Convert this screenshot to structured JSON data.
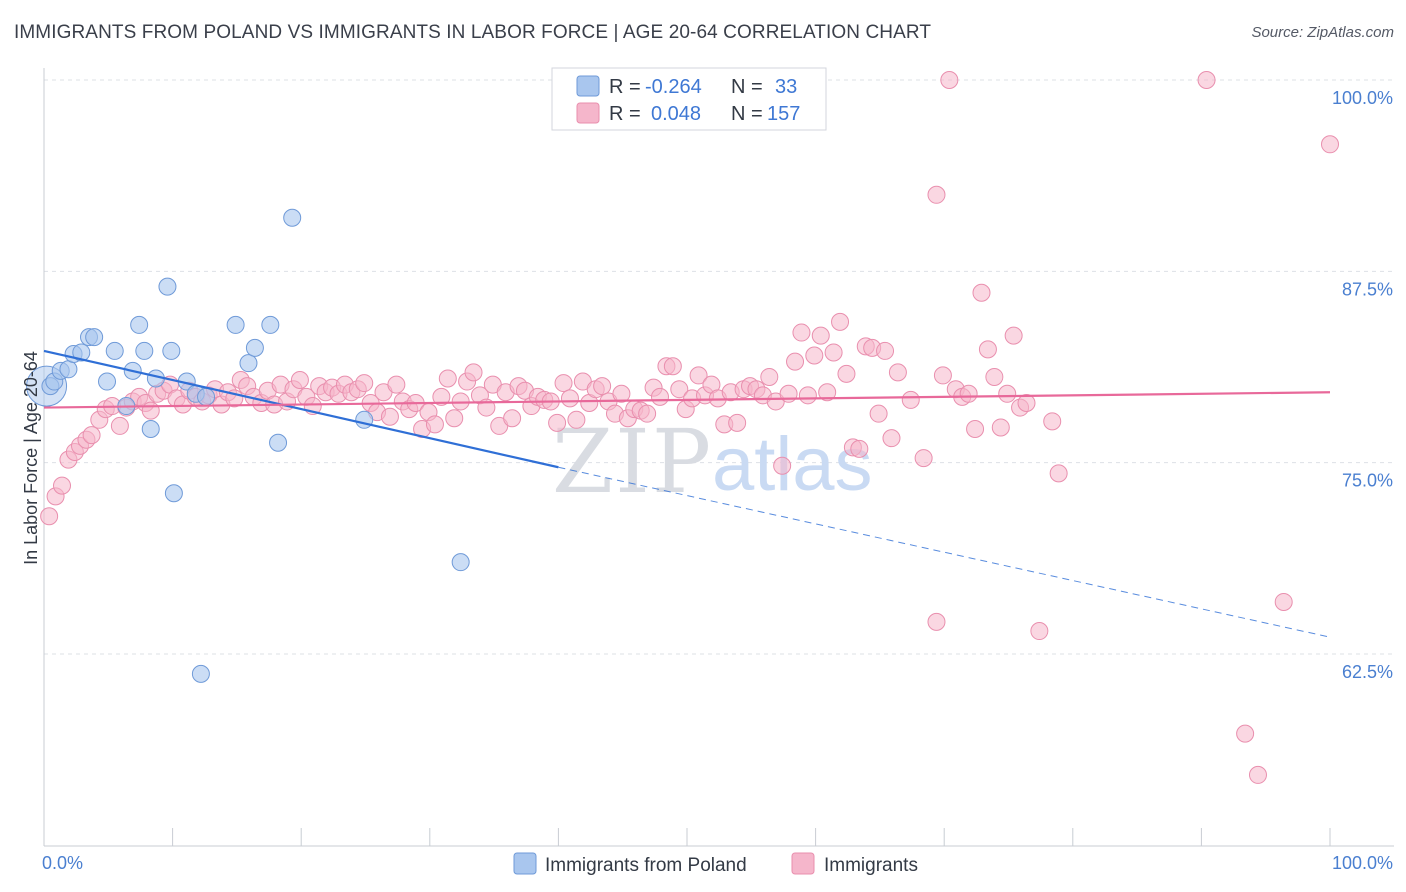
{
  "title": "IMMIGRANTS FROM POLAND VS IMMIGRANTS IN LABOR FORCE | AGE 20-64 CORRELATION CHART",
  "source": "Source: ZipAtlas.com",
  "watermark": {
    "zip": "ZIP",
    "atlas": "atlas"
  },
  "colors": {
    "blue_fill": "#a9c6ee",
    "blue_stroke": "#6f9ad8",
    "blue_line": "#2f6fd6",
    "pink_fill": "#f5b6cb",
    "pink_stroke": "#e98fae",
    "pink_line": "#e8699a",
    "grid": "#dde0e6",
    "tick_label": "#4a7fd0"
  },
  "legend": {
    "rows": [
      {
        "r_label": "R =",
        "r_value": "-0.264",
        "n_label": "N =",
        "n_value": "33"
      },
      {
        "r_label": "R =",
        "r_value": "0.048",
        "n_label": "N =",
        "n_value": "157"
      }
    ]
  },
  "bottom_legend": [
    {
      "label": "Immigrants from Poland"
    },
    {
      "label": "Immigrants"
    }
  ],
  "chart_data": {
    "type": "scatter",
    "title": "IMMIGRANTS FROM POLAND VS IMMIGRANTS IN LABOR FORCE | AGE 20-64 CORRELATION CHART",
    "xlabel": "Immigrants from Poland",
    "ylabel": "In Labor Force | Age 20-64",
    "xlim": [
      0,
      100
    ],
    "ylim": [
      51.5,
      101.5
    ],
    "x_tick_labels": [
      "0.0%",
      "100.0%"
    ],
    "y_ticks": [
      62.5,
      75.0,
      87.5,
      100.0
    ],
    "y_tick_labels": [
      "62.5%",
      "75.0%",
      "87.5%",
      "100.0%"
    ],
    "x_tick_marks": [
      0,
      10,
      20,
      30,
      40,
      50,
      60,
      70,
      80,
      90,
      100
    ],
    "series": [
      {
        "name": "Immigrants from Poland",
        "r": -0.264,
        "n": 33,
        "trend": {
          "x0": 0,
          "y0": 82.3,
          "x1": 40,
          "y1": 74.7,
          "dash_to_x": 100,
          "dash_to_y": 63.6
        },
        "points": [
          [
            0.5,
            80.0
          ],
          [
            0.8,
            80.3
          ],
          [
            1.3,
            81.0
          ],
          [
            1.9,
            81.1
          ],
          [
            2.3,
            82.1
          ],
          [
            2.9,
            82.2
          ],
          [
            3.5,
            83.2
          ],
          [
            3.9,
            83.2
          ],
          [
            4.9,
            80.3
          ],
          [
            5.5,
            82.3
          ],
          [
            6.4,
            78.7
          ],
          [
            6.9,
            81.0
          ],
          [
            7.4,
            84.0
          ],
          [
            7.8,
            82.3
          ],
          [
            8.3,
            77.2
          ],
          [
            8.7,
            80.5
          ],
          [
            9.6,
            86.5
          ],
          [
            9.9,
            82.3
          ],
          [
            10.1,
            73.0
          ],
          [
            11.1,
            80.3
          ],
          [
            11.8,
            79.5
          ],
          [
            12.2,
            61.2
          ],
          [
            12.6,
            79.3
          ],
          [
            14.9,
            84.0
          ],
          [
            15.9,
            81.5
          ],
          [
            16.4,
            82.5
          ],
          [
            17.6,
            84.0
          ],
          [
            18.2,
            76.3
          ],
          [
            19.3,
            91.0
          ],
          [
            24.9,
            77.8
          ],
          [
            32.4,
            68.5
          ]
        ],
        "big_point": [
          0.2,
          80.0
        ]
      },
      {
        "name": "Immigrants",
        "r": 0.048,
        "n": 157,
        "trend": {
          "x0": 0,
          "y0": 78.6,
          "x1": 100,
          "y1": 79.6
        },
        "points": [
          [
            0.4,
            71.5
          ],
          [
            0.9,
            72.8
          ],
          [
            1.4,
            73.5
          ],
          [
            1.9,
            75.2
          ],
          [
            2.4,
            75.7
          ],
          [
            2.8,
            76.1
          ],
          [
            3.3,
            76.5
          ],
          [
            3.7,
            76.8
          ],
          [
            4.3,
            77.8
          ],
          [
            4.8,
            78.5
          ],
          [
            5.3,
            78.7
          ],
          [
            5.9,
            77.4
          ],
          [
            6.4,
            78.6
          ],
          [
            6.9,
            79.0
          ],
          [
            7.4,
            79.3
          ],
          [
            7.9,
            78.9
          ],
          [
            8.3,
            78.4
          ],
          [
            8.8,
            79.5
          ],
          [
            9.3,
            79.7
          ],
          [
            9.8,
            80.1
          ],
          [
            10.3,
            79.2
          ],
          [
            10.8,
            78.8
          ],
          [
            11.3,
            79.7
          ],
          [
            11.8,
            79.3
          ],
          [
            12.3,
            79.0
          ],
          [
            12.8,
            79.4
          ],
          [
            13.3,
            79.8
          ],
          [
            13.8,
            78.8
          ],
          [
            14.3,
            79.6
          ],
          [
            14.8,
            79.2
          ],
          [
            15.3,
            80.4
          ],
          [
            15.8,
            80.0
          ],
          [
            16.3,
            79.3
          ],
          [
            16.9,
            78.9
          ],
          [
            17.4,
            79.7
          ],
          [
            17.9,
            78.8
          ],
          [
            18.4,
            80.1
          ],
          [
            18.9,
            79.0
          ],
          [
            19.4,
            79.8
          ],
          [
            19.9,
            80.4
          ],
          [
            20.4,
            79.3
          ],
          [
            20.9,
            78.7
          ],
          [
            21.4,
            80.0
          ],
          [
            21.9,
            79.6
          ],
          [
            22.4,
            79.9
          ],
          [
            22.9,
            79.5
          ],
          [
            23.4,
            80.1
          ],
          [
            23.9,
            79.6
          ],
          [
            24.4,
            79.8
          ],
          [
            24.9,
            80.2
          ],
          [
            25.4,
            78.9
          ],
          [
            25.9,
            78.3
          ],
          [
            26.4,
            79.6
          ],
          [
            26.9,
            78.0
          ],
          [
            27.4,
            80.1
          ],
          [
            27.9,
            79.0
          ],
          [
            28.4,
            78.5
          ],
          [
            28.9,
            78.9
          ],
          [
            29.4,
            77.2
          ],
          [
            29.9,
            78.3
          ],
          [
            30.4,
            77.5
          ],
          [
            30.9,
            79.3
          ],
          [
            31.4,
            80.5
          ],
          [
            31.9,
            77.9
          ],
          [
            32.4,
            79.0
          ],
          [
            32.9,
            80.3
          ],
          [
            33.4,
            80.9
          ],
          [
            33.9,
            79.4
          ],
          [
            34.4,
            78.6
          ],
          [
            34.9,
            80.1
          ],
          [
            35.4,
            77.4
          ],
          [
            35.9,
            79.6
          ],
          [
            36.4,
            77.9
          ],
          [
            36.9,
            80.0
          ],
          [
            37.4,
            79.7
          ],
          [
            37.9,
            78.7
          ],
          [
            38.4,
            79.3
          ],
          [
            38.9,
            79.1
          ],
          [
            39.4,
            79.0
          ],
          [
            39.9,
            77.6
          ],
          [
            40.4,
            80.2
          ],
          [
            40.9,
            79.2
          ],
          [
            41.4,
            77.8
          ],
          [
            41.9,
            80.3
          ],
          [
            42.4,
            78.9
          ],
          [
            42.9,
            79.8
          ],
          [
            43.4,
            80.0
          ],
          [
            43.9,
            79.0
          ],
          [
            44.4,
            78.2
          ],
          [
            44.9,
            79.5
          ],
          [
            45.4,
            77.9
          ],
          [
            45.9,
            78.5
          ],
          [
            46.4,
            78.4
          ],
          [
            46.9,
            78.2
          ],
          [
            47.4,
            79.9
          ],
          [
            47.9,
            79.3
          ],
          [
            48.4,
            81.3
          ],
          [
            48.9,
            81.3
          ],
          [
            49.4,
            79.8
          ],
          [
            49.9,
            78.5
          ],
          [
            50.4,
            79.2
          ],
          [
            50.9,
            80.7
          ],
          [
            51.4,
            79.4
          ],
          [
            51.9,
            80.1
          ],
          [
            52.4,
            79.2
          ],
          [
            52.9,
            77.5
          ],
          [
            53.4,
            79.6
          ],
          [
            53.9,
            77.6
          ],
          [
            54.4,
            79.8
          ],
          [
            54.9,
            80.0
          ],
          [
            55.4,
            79.8
          ],
          [
            55.9,
            79.4
          ],
          [
            56.4,
            80.6
          ],
          [
            56.9,
            79.0
          ],
          [
            57.4,
            74.8
          ],
          [
            57.9,
            79.5
          ],
          [
            58.4,
            81.6
          ],
          [
            58.9,
            83.5
          ],
          [
            59.4,
            79.4
          ],
          [
            59.9,
            82.0
          ],
          [
            60.4,
            83.3
          ],
          [
            60.9,
            79.6
          ],
          [
            61.4,
            82.2
          ],
          [
            61.9,
            84.2
          ],
          [
            62.4,
            80.8
          ],
          [
            62.9,
            76.0
          ],
          [
            63.4,
            75.9
          ],
          [
            63.9,
            82.6
          ],
          [
            64.4,
            82.5
          ],
          [
            64.9,
            78.2
          ],
          [
            65.4,
            82.3
          ],
          [
            65.9,
            76.6
          ],
          [
            66.4,
            80.9
          ],
          [
            67.4,
            79.1
          ],
          [
            68.4,
            75.3
          ],
          [
            69.4,
            64.6
          ],
          [
            69.9,
            80.7
          ],
          [
            70.9,
            79.8
          ],
          [
            71.4,
            79.3
          ],
          [
            71.9,
            79.5
          ],
          [
            72.4,
            77.2
          ],
          [
            72.9,
            86.1
          ],
          [
            73.4,
            82.4
          ],
          [
            73.9,
            80.6
          ],
          [
            74.4,
            77.3
          ],
          [
            74.9,
            79.5
          ],
          [
            75.4,
            83.3
          ],
          [
            75.9,
            78.6
          ],
          [
            76.4,
            78.9
          ],
          [
            77.4,
            64.0
          ],
          [
            78.4,
            77.7
          ],
          [
            78.9,
            74.3
          ]
        ],
        "outliers": [
          [
            69.4,
            92.5
          ],
          [
            70.4,
            100.0
          ],
          [
            90.4,
            100.0
          ],
          [
            100.0,
            95.8
          ],
          [
            96.4,
            65.9
          ],
          [
            93.4,
            57.3
          ],
          [
            94.4,
            54.6
          ]
        ]
      }
    ]
  }
}
